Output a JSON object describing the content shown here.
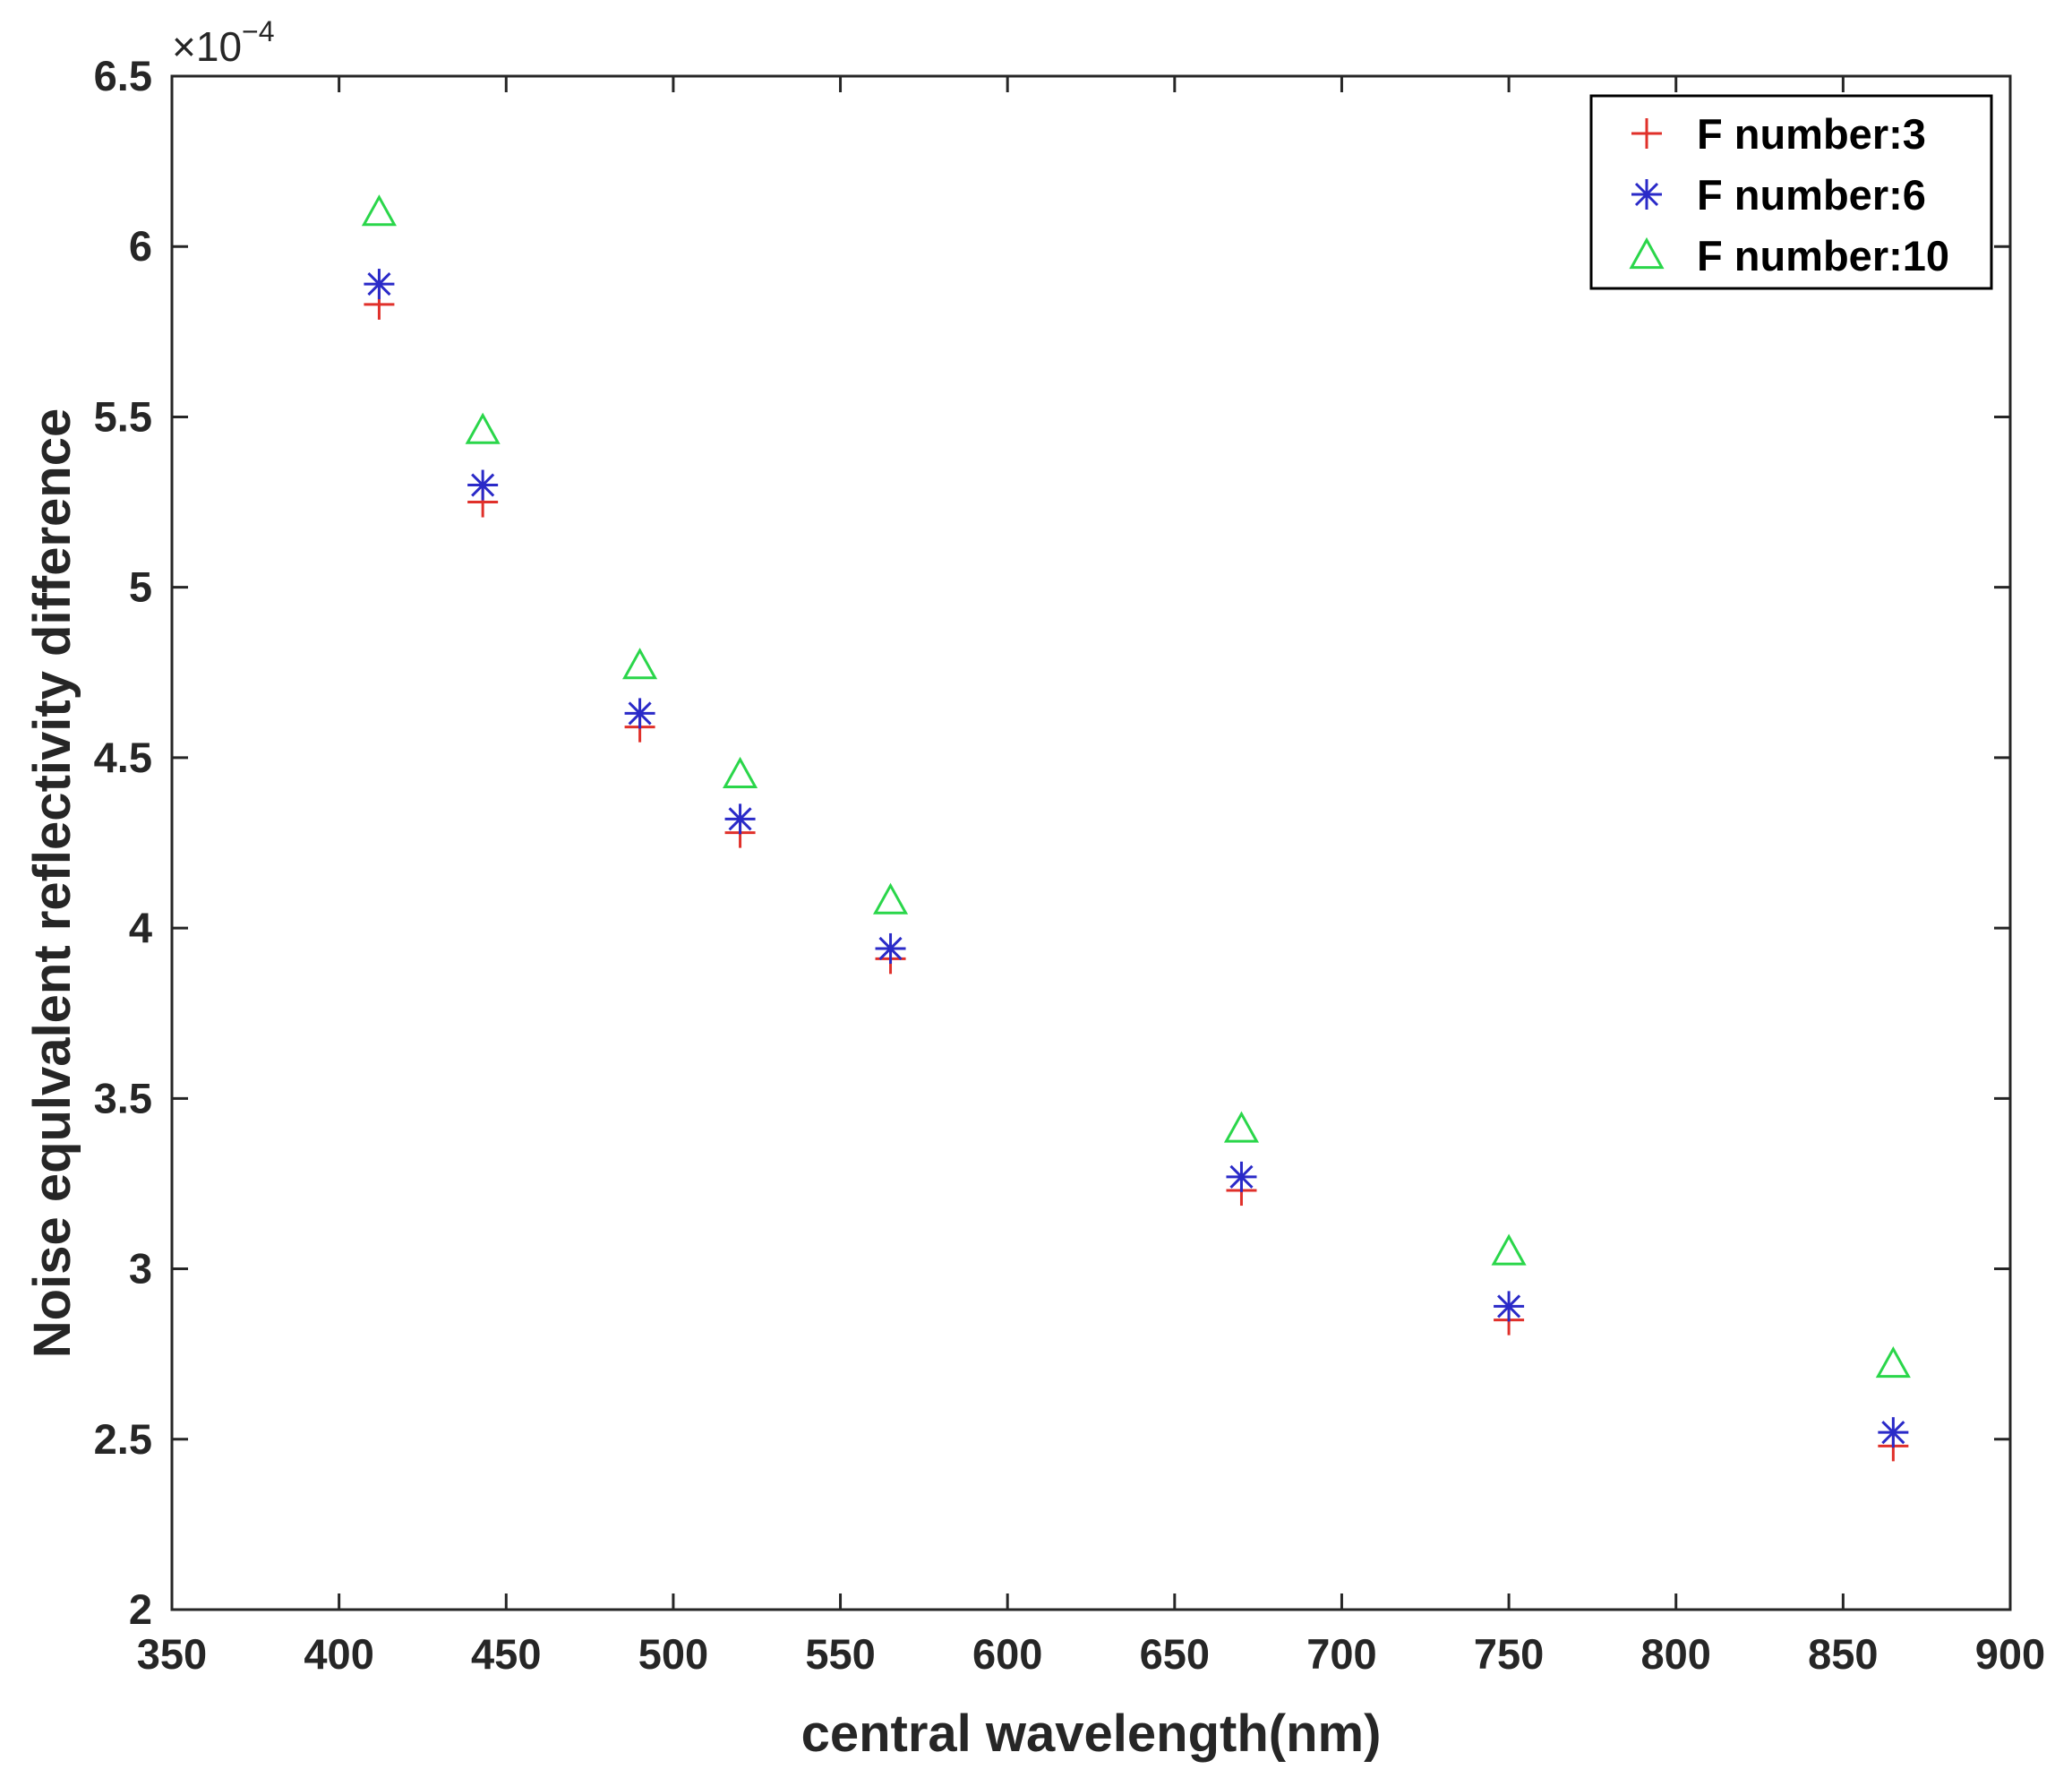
{
  "chart_data": {
    "type": "scatter",
    "title": "",
    "xlabel": "central wavelength(nm)",
    "ylabel": "Noise equlvalent reflectivity difference",
    "y_exponent_base": "×10",
    "y_exponent_power": "−4",
    "xlim": [
      350,
      900
    ],
    "ylim": [
      2,
      6.5
    ],
    "x_ticks": [
      350,
      400,
      450,
      500,
      550,
      600,
      650,
      700,
      750,
      800,
      850,
      900
    ],
    "x_tick_labels": [
      "350",
      "400",
      "450",
      "500",
      "550",
      "600",
      "650",
      "700",
      "750",
      "800",
      "850",
      "900"
    ],
    "y_ticks": [
      2,
      2.5,
      3,
      3.5,
      4,
      4.5,
      5,
      5.5,
      6,
      6.5
    ],
    "y_tick_labels": [
      "2",
      "2.5",
      "3",
      "3.5",
      "4",
      "4.5",
      "5",
      "5.5",
      "6",
      "6.5"
    ],
    "grid": false,
    "legend_position": "top-right",
    "x": [
      412,
      443,
      490,
      520,
      565,
      670,
      750,
      865
    ],
    "series": [
      {
        "name": "F number:3",
        "marker": "plus",
        "color": "#e0302a",
        "values": [
          5.83,
          5.25,
          4.59,
          4.28,
          3.91,
          3.23,
          2.85,
          2.48
        ]
      },
      {
        "name": "F number:6",
        "marker": "asterisk",
        "color": "#2a2ac8",
        "values": [
          5.89,
          5.3,
          4.63,
          4.32,
          3.94,
          3.27,
          2.89,
          2.52
        ]
      },
      {
        "name": "F number:10",
        "marker": "triangle",
        "color": "#2ad64a",
        "values": [
          6.1,
          5.46,
          4.77,
          4.45,
          4.08,
          3.41,
          3.05,
          2.72
        ]
      }
    ]
  }
}
